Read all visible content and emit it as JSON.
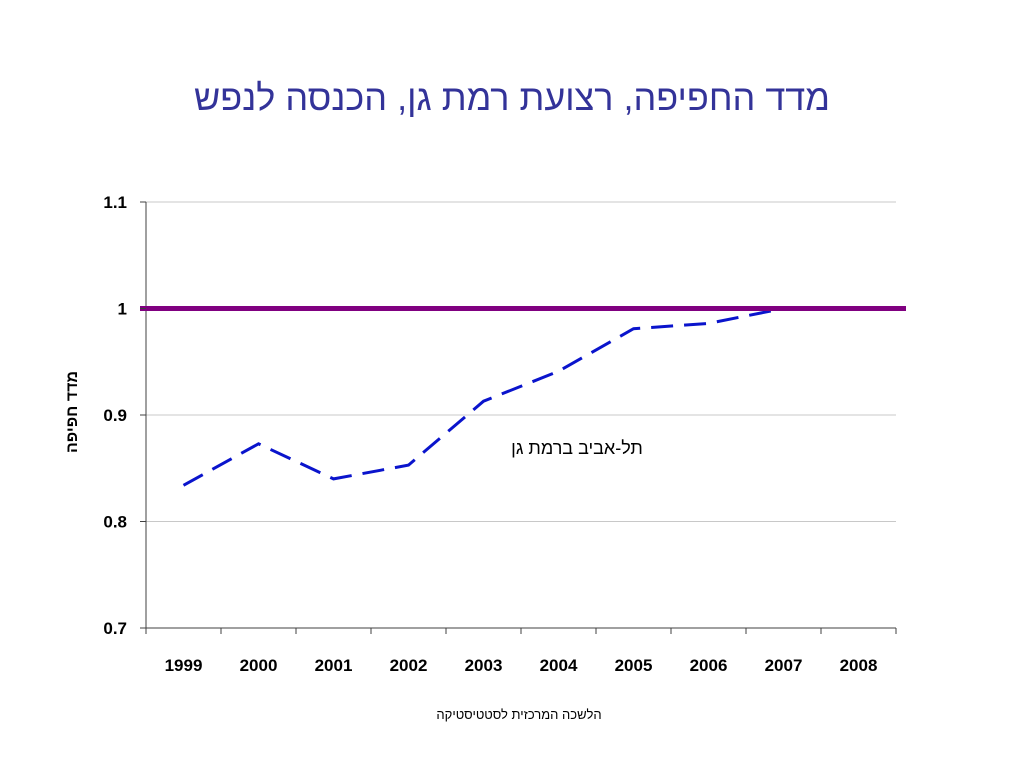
{
  "slide": {
    "title_color": "#333399",
    "source_note": "הלשכה המרכזית לסטטיסטיקה"
  },
  "chart_data": {
    "type": "line",
    "title": "מדד החפיפה, רצועת רמת גן, הכנסה לנפש",
    "xlabel": "",
    "ylabel": "מדד חפיפה",
    "categories": [
      "1999",
      "2000",
      "2001",
      "2002",
      "2003",
      "2004",
      "2005",
      "2006",
      "2007",
      "2008"
    ],
    "ylim": [
      0.7,
      1.1
    ],
    "yticks": [
      0.7,
      0.8,
      0.9,
      1,
      1.1
    ],
    "ytick_labels": [
      "0.7",
      "0.8",
      "0.9",
      "1",
      "1.1"
    ],
    "grid": "horizontal",
    "legend": "none",
    "series": [
      {
        "name": "תל-אביב ברמת גן",
        "values": [
          0.834,
          0.873,
          0.84,
          0.853,
          0.913,
          0.941,
          0.981,
          0.986,
          1.0,
          1.0
        ],
        "color": "#0A14CC",
        "line_style": "dashed"
      }
    ],
    "reference_line": {
      "y": 1,
      "color": "#800080"
    }
  }
}
